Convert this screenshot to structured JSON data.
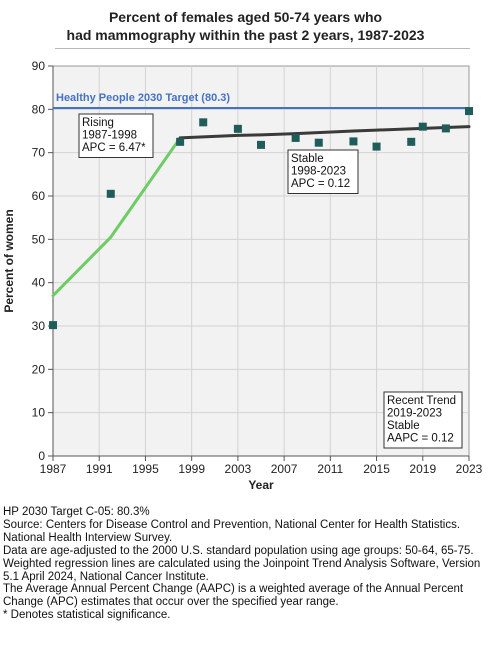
{
  "chart_data": {
    "type": "scatter",
    "title_lines": [
      "Percent of females aged 50-74 years who",
      "had mammography within the past 2 years, 1987-2023"
    ],
    "xlabel": "Year",
    "ylabel": "Percent of women",
    "xlim": [
      1987,
      2023
    ],
    "ylim": [
      0,
      90
    ],
    "x_ticks": [
      1987,
      1991,
      1995,
      1999,
      2003,
      2007,
      2011,
      2015,
      2019,
      2023
    ],
    "y_ticks": [
      0,
      10,
      20,
      30,
      40,
      50,
      60,
      70,
      80,
      90
    ],
    "grid": true,
    "target": {
      "label": "Healthy People 2030 Target (80.3)",
      "value": 80.3,
      "color": "#4472c4"
    },
    "observed": {
      "x": [
        1987,
        1992,
        1998,
        2000,
        2003,
        2005,
        2008,
        2010,
        2013,
        2015,
        2018,
        2019,
        2021,
        2023
      ],
      "y": [
        30.2,
        60.5,
        72.5,
        77.0,
        75.5,
        71.8,
        73.4,
        72.3,
        72.6,
        71.4,
        72.5,
        76.0,
        75.6,
        79.6
      ],
      "color": "#1f5c5a"
    },
    "trend_rising": {
      "x": [
        1987,
        1992,
        1998
      ],
      "y": [
        37.0,
        50.5,
        73.4
      ],
      "color": "#6dcc64"
    },
    "trend_stable": {
      "x": [
        1998,
        2003,
        2005,
        2008,
        2013,
        2015,
        2019,
        2023
      ],
      "y": [
        73.4,
        74.0,
        74.1,
        74.4,
        75.0,
        75.2,
        75.6,
        76.0
      ],
      "color": "#3a3a3a"
    },
    "annotations": [
      {
        "lines": [
          "Rising",
          "1987-1998",
          "APC =  6.47*"
        ]
      },
      {
        "lines": [
          "Stable",
          "1998-2023",
          "APC =  0.12"
        ]
      },
      {
        "lines": [
          "Recent Trend",
          "2019-2023",
          "Stable",
          "AAPC =  0.12"
        ]
      }
    ]
  },
  "notes": [
    "HP 2030 Target C-05: 80.3%",
    "Source: Centers for Disease Control and Prevention, National Center for Health Statistics. National Health Interview Survey.",
    "Data are age-adjusted to the 2000 U.S. standard population using age groups: 50-64, 65-75.",
    "Weighted regression lines are calculated using the Joinpoint Trend Analysis Software, Version 5.1 April 2024, National Cancer Institute.",
    "The Average Annual Percent Change (AAPC) is a weighted average of the Annual Percent Change (APC) estimates that occur over the specified year range.",
    "* Denotes statistical significance."
  ]
}
